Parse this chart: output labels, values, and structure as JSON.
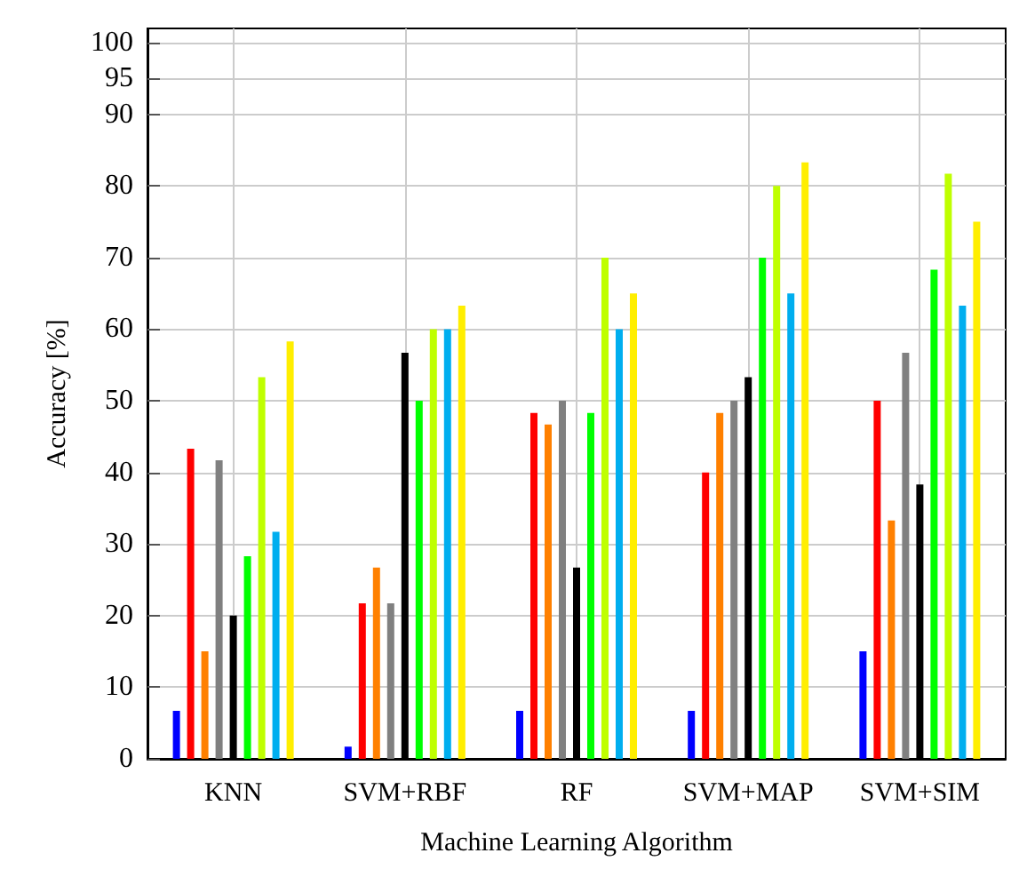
{
  "chart_data": {
    "type": "bar",
    "xlabel": "Machine Learning Algorithm",
    "ylabel": "Accuracy [%]",
    "categories": [
      "KNN",
      "SVM+RBF",
      "RF",
      "SVM+MAP",
      "SVM+SIM"
    ],
    "series": [
      {
        "color": "#0000ff",
        "values": [
          6.7,
          1.7,
          6.7,
          6.7,
          15
        ]
      },
      {
        "color": "#ff0000",
        "values": [
          43.3,
          21.7,
          48.3,
          40,
          50
        ]
      },
      {
        "color": "#ff8000",
        "values": [
          15,
          26.7,
          46.7,
          48.3,
          33.3
        ]
      },
      {
        "color": "#808080",
        "values": [
          41.7,
          21.7,
          50,
          50,
          56.7
        ]
      },
      {
        "color": "#000000",
        "values": [
          20,
          56.7,
          26.7,
          53.3,
          38.3
        ]
      },
      {
        "color": "#00ff00",
        "values": [
          28.3,
          50,
          48.3,
          70,
          68.3
        ]
      },
      {
        "color": "#bfff00",
        "values": [
          53.3,
          60,
          70,
          80,
          81.7
        ]
      },
      {
        "color": "#00aeef",
        "values": [
          31.7,
          60,
          60,
          65,
          63.3
        ]
      },
      {
        "color": "#ffee00",
        "values": [
          58.3,
          63.3,
          65,
          83.3,
          75
        ]
      }
    ],
    "ylim": [
      0,
      102
    ],
    "yticks": [
      0,
      10,
      20,
      30,
      40,
      50,
      60,
      70,
      80,
      90,
      95,
      100
    ],
    "grid": true
  }
}
